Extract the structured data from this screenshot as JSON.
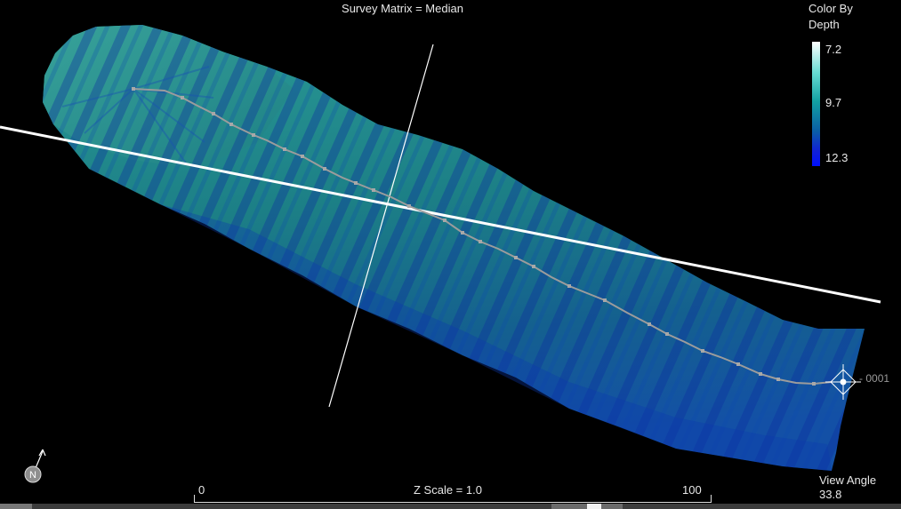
{
  "view": {
    "title": "Survey Matrix = Median",
    "view_angle_label": "View Angle",
    "view_angle_value": "33.8",
    "line_label": "0001"
  },
  "legend": {
    "title_line1": "Color By",
    "title_line2": "Depth",
    "ticks": [
      "7.2",
      "9.7",
      "12.3"
    ]
  },
  "scale": {
    "z_scale": "Z Scale = 1.0",
    "min": "0",
    "max": "100"
  },
  "compass": {
    "letter": "N"
  },
  "colors": {
    "background": "#000000",
    "surface_teal": "#1f8a8c",
    "surface_deep": "#0c3aa8",
    "track": "#9a9a9a",
    "crosshair": "#ffffff"
  }
}
